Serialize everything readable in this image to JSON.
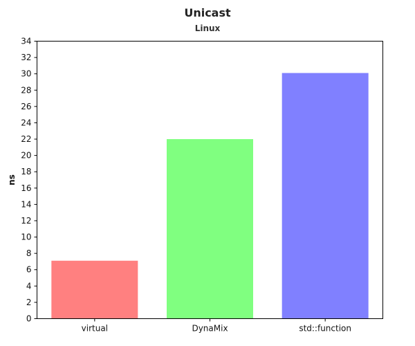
{
  "chart_data": {
    "type": "bar",
    "title": "Unicast",
    "subtitle": "Linux",
    "xlabel": "",
    "ylabel": "ns",
    "ylim": [
      0,
      34
    ],
    "yticks": [
      0,
      2,
      4,
      6,
      8,
      10,
      12,
      14,
      16,
      18,
      20,
      22,
      24,
      26,
      28,
      30,
      32,
      34
    ],
    "categories": [
      "virtual",
      "DynaMix",
      "std::function"
    ],
    "values": [
      7.1,
      22,
      30.1
    ],
    "colors": [
      "#ff8080",
      "#80ff80",
      "#8080ff"
    ],
    "grid": false,
    "legend": "none"
  }
}
